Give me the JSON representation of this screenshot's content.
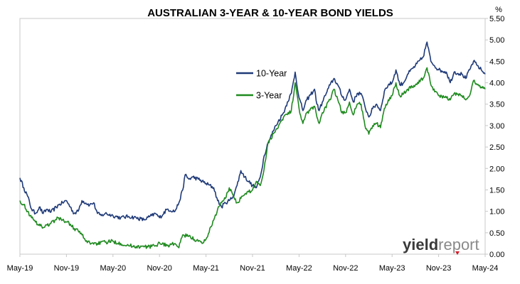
{
  "chart_data": {
    "type": "line",
    "title": "AUSTRALIAN 3-YEAR & 10-YEAR BOND YIELDS",
    "ylabel": "%",
    "xlabel": "",
    "ylim": [
      0,
      5.5
    ],
    "yticks": [
      "0.00",
      "0.50",
      "1.00",
      "1.50",
      "2.00",
      "2.50",
      "3.00",
      "3.50",
      "4.00",
      "4.50",
      "5.00",
      "5.50"
    ],
    "xticks": [
      "May-19",
      "Nov-19",
      "May-20",
      "Nov-20",
      "May-21",
      "Nov-21",
      "May-22",
      "Nov-22",
      "May-23",
      "Nov-23",
      "May-24"
    ],
    "grid": false,
    "legend_position": "center-left",
    "series": [
      {
        "name": "10-Year",
        "color": "#1f3a78",
        "points": [
          [
            0,
            1.78
          ],
          [
            0.5,
            1.55
          ],
          [
            1,
            1.35
          ],
          [
            1.5,
            1.05
          ],
          [
            2,
            0.95
          ],
          [
            2.5,
            1.1
          ],
          [
            3,
            0.95
          ],
          [
            3.5,
            1.05
          ],
          [
            4,
            0.98
          ],
          [
            5,
            1.15
          ],
          [
            5.5,
            1.2
          ],
          [
            6,
            1.25
          ],
          [
            6.5,
            1.1
          ],
          [
            7,
            0.95
          ],
          [
            7.5,
            1.0
          ],
          [
            8,
            1.25
          ],
          [
            9,
            1.15
          ],
          [
            9.5,
            1.2
          ],
          [
            10,
            0.95
          ],
          [
            10.5,
            0.9
          ],
          [
            11,
            0.95
          ],
          [
            12,
            0.9
          ],
          [
            13,
            0.85
          ],
          [
            14,
            0.88
          ],
          [
            15,
            0.85
          ],
          [
            16,
            0.8
          ],
          [
            17,
            0.9
          ],
          [
            17.5,
            0.95
          ],
          [
            18,
            0.85
          ],
          [
            19,
            1.05
          ],
          [
            20,
            1.0
          ],
          [
            20.5,
            1.2
          ],
          [
            21,
            1.5
          ],
          [
            21.3,
            1.85
          ],
          [
            21.8,
            1.75
          ],
          [
            22.3,
            1.8
          ],
          [
            23,
            1.75
          ],
          [
            24,
            1.65
          ],
          [
            25,
            1.55
          ],
          [
            25.5,
            1.25
          ],
          [
            26,
            1.1
          ],
          [
            26.5,
            1.2
          ],
          [
            27,
            1.25
          ],
          [
            27.5,
            1.35
          ],
          [
            28,
            1.6
          ],
          [
            28.5,
            1.95
          ],
          [
            29,
            1.8
          ],
          [
            30,
            1.6
          ],
          [
            30.5,
            1.55
          ],
          [
            31,
            1.8
          ],
          [
            31.5,
            2.3
          ],
          [
            32,
            2.6
          ],
          [
            33,
            3.0
          ],
          [
            34,
            3.3
          ],
          [
            34.5,
            3.55
          ],
          [
            35,
            3.75
          ],
          [
            35.5,
            4.25
          ],
          [
            36,
            3.65
          ],
          [
            36.5,
            3.35
          ],
          [
            37,
            3.6
          ],
          [
            38,
            3.85
          ],
          [
            38.3,
            3.5
          ],
          [
            38.6,
            3.35
          ],
          [
            39,
            3.55
          ],
          [
            39.5,
            3.75
          ],
          [
            40,
            3.95
          ],
          [
            40.5,
            4.1
          ],
          [
            41,
            3.95
          ],
          [
            41.5,
            3.7
          ],
          [
            42,
            3.6
          ],
          [
            42.5,
            3.85
          ],
          [
            43,
            3.55
          ],
          [
            43.5,
            3.75
          ],
          [
            44,
            3.75
          ],
          [
            44.5,
            3.45
          ],
          [
            45,
            3.2
          ],
          [
            45.5,
            3.4
          ],
          [
            46,
            3.5
          ],
          [
            46.5,
            3.35
          ],
          [
            47,
            3.8
          ],
          [
            47.5,
            3.95
          ],
          [
            48,
            4.0
          ],
          [
            48.5,
            4.3
          ],
          [
            49,
            3.95
          ],
          [
            49.5,
            4.0
          ],
          [
            50,
            4.2
          ],
          [
            51,
            4.4
          ],
          [
            52,
            4.6
          ],
          [
            52.5,
            4.95
          ],
          [
            53,
            4.5
          ],
          [
            54,
            4.3
          ],
          [
            55,
            4.25
          ],
          [
            55.5,
            4.0
          ],
          [
            56,
            4.25
          ],
          [
            57,
            4.2
          ],
          [
            57.5,
            4.1
          ],
          [
            58,
            4.3
          ],
          [
            58.5,
            4.5
          ],
          [
            59,
            4.4
          ],
          [
            59.5,
            4.3
          ],
          [
            60,
            4.2
          ]
        ]
      },
      {
        "name": "3-Year",
        "color": "#1f8a1f",
        "points": [
          [
            0,
            1.25
          ],
          [
            0.5,
            1.15
          ],
          [
            1,
            1.0
          ],
          [
            1.5,
            0.85
          ],
          [
            2,
            0.75
          ],
          [
            2.5,
            0.7
          ],
          [
            3,
            0.62
          ],
          [
            3.5,
            0.68
          ],
          [
            4,
            0.72
          ],
          [
            5,
            0.85
          ],
          [
            5.5,
            0.8
          ],
          [
            6,
            0.75
          ],
          [
            6.5,
            0.7
          ],
          [
            7,
            0.6
          ],
          [
            7.5,
            0.55
          ],
          [
            8,
            0.45
          ],
          [
            8.5,
            0.3
          ],
          [
            9,
            0.27
          ],
          [
            10,
            0.25
          ],
          [
            11,
            0.28
          ],
          [
            12,
            0.3
          ],
          [
            13,
            0.25
          ],
          [
            14,
            0.2
          ],
          [
            15,
            0.18
          ],
          [
            16,
            0.17
          ],
          [
            17,
            0.18
          ],
          [
            17.5,
            0.2
          ],
          [
            18,
            0.27
          ],
          [
            19,
            0.2
          ],
          [
            20,
            0.25
          ],
          [
            20.5,
            0.15
          ],
          [
            21,
            0.45
          ],
          [
            22,
            0.4
          ],
          [
            23,
            0.3
          ],
          [
            23.5,
            0.25
          ],
          [
            24,
            0.35
          ],
          [
            25,
            0.8
          ],
          [
            25.5,
            1.05
          ],
          [
            26,
            1.2
          ],
          [
            26.5,
            1.3
          ],
          [
            27,
            1.55
          ],
          [
            28,
            1.2
          ],
          [
            28.5,
            1.3
          ],
          [
            29,
            1.4
          ],
          [
            30,
            1.5
          ],
          [
            30.5,
            1.7
          ],
          [
            31,
            1.6
          ],
          [
            31.5,
            2.0
          ],
          [
            32,
            2.6
          ],
          [
            33,
            2.9
          ],
          [
            34,
            3.2
          ],
          [
            35,
            3.35
          ],
          [
            35.5,
            4.0
          ],
          [
            36,
            3.4
          ],
          [
            36.5,
            3.05
          ],
          [
            37,
            3.3
          ],
          [
            38,
            3.45
          ],
          [
            38.3,
            3.2
          ],
          [
            38.6,
            3.05
          ],
          [
            39,
            3.3
          ],
          [
            40,
            3.6
          ],
          [
            40.5,
            3.85
          ],
          [
            41,
            3.6
          ],
          [
            41.5,
            3.3
          ],
          [
            42,
            3.3
          ],
          [
            42.5,
            3.55
          ],
          [
            43,
            3.25
          ],
          [
            43.5,
            3.5
          ],
          [
            44,
            3.5
          ],
          [
            44.5,
            3.0
          ],
          [
            45,
            2.8
          ],
          [
            45.5,
            3.0
          ],
          [
            46,
            3.05
          ],
          [
            46.5,
            2.95
          ],
          [
            47,
            3.4
          ],
          [
            47.5,
            3.6
          ],
          [
            48,
            3.7
          ],
          [
            48.5,
            4.0
          ],
          [
            49,
            3.7
          ],
          [
            49.5,
            3.75
          ],
          [
            50,
            3.85
          ],
          [
            51,
            3.95
          ],
          [
            52,
            4.1
          ],
          [
            52.5,
            4.35
          ],
          [
            53,
            3.95
          ],
          [
            54,
            3.7
          ],
          [
            55,
            3.65
          ],
          [
            55.5,
            3.6
          ],
          [
            56,
            3.75
          ],
          [
            57,
            3.7
          ],
          [
            57.5,
            3.6
          ],
          [
            58,
            3.7
          ],
          [
            58.5,
            4.05
          ],
          [
            59,
            3.95
          ],
          [
            59.5,
            3.9
          ],
          [
            60,
            3.85
          ]
        ]
      }
    ]
  },
  "logo": {
    "part1": "yield",
    "part2": "report"
  }
}
